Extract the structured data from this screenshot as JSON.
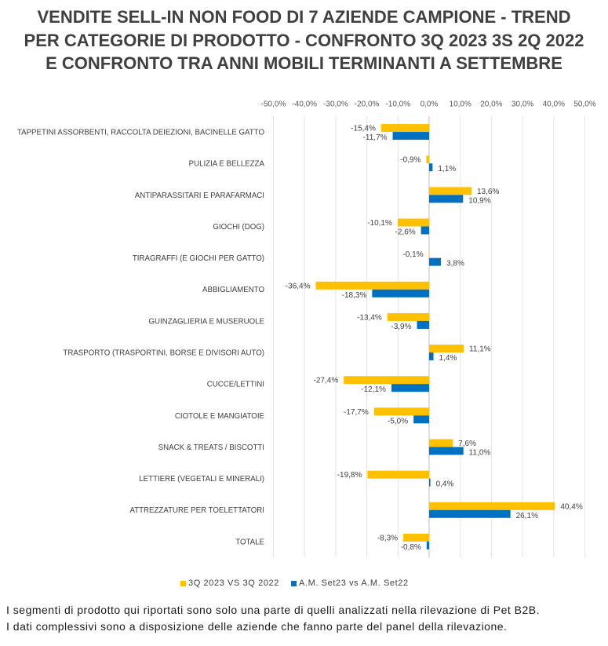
{
  "chart_data": {
    "type": "bar",
    "orientation": "horizontal",
    "title": "VENDITE SELL-IN NON FOOD DI 7 AZIENDE CAMPIONE - TREND\nPER CATEGORIE DI PRODOTTO - CONFRONTO 3Q 2023 3S 2Q 2022\nE CONFRONTO TRA ANNI MOBILI TERMINANTI A SETTEMBRE",
    "xlim": [
      -50,
      50
    ],
    "x_axis_position": "top",
    "x_ticks": [
      -50,
      -40,
      -30,
      -20,
      -10,
      0,
      10,
      20,
      30,
      40,
      50
    ],
    "x_tick_labels": [
      "-50,0%",
      "-40,0%",
      "-30,0%",
      "-20,0%",
      "-10,0%",
      "0,0%",
      "10,0%",
      "20,0%",
      "30,0%",
      "40,0%",
      "50,0%"
    ],
    "grid": true,
    "legend_position": "bottom",
    "categories": [
      "TAPPETINI ASSORBENTI, RACCOLTA DEIEZIONI, BACINELLE GATTO",
      "PULIZIA E BELLEZZA",
      "ANTIPARASSITARI E PARAFARMACI",
      "GIOCHI (DOG)",
      "TIRAGRAFFI (E GIOCHI PER GATTO)",
      "ABBIGLIAMENTO",
      "GUINZAGLIERIA E MUSERUOLE",
      "TRASPORTO (TRASPORTINI, BORSE E DIVISORI AUTO)",
      "CUCCE/LETTINI",
      "CIOTOLE E MANGIATOIE",
      "SNACK & TREATS / BISCOTTI",
      "LETTIERE (VEGETALI E MINERALI)",
      "ATTREZZATURE PER TOELETTATORI",
      "TOTALE"
    ],
    "series": [
      {
        "name": "3Q 2023 VS 3Q 2022",
        "color": "#FFC000",
        "values": [
          -15.4,
          -0.9,
          13.6,
          -10.1,
          -0.1,
          -36.4,
          -13.4,
          11.1,
          -27.4,
          -17.7,
          7.6,
          -19.8,
          40.4,
          -8.3
        ],
        "labels": [
          "-15,4%",
          "-0,9%",
          "13,6%",
          "-10,1%",
          "-0,1%",
          "-36,4%",
          "-13,4%",
          "11,1%",
          "-27,4%",
          "-17,7%",
          "7,6%",
          "-19,8%",
          "40,4%",
          "-8,3%"
        ]
      },
      {
        "name": "A.M. Set23 vs A.M. Set22",
        "color": "#0070C0",
        "values": [
          -11.7,
          1.1,
          10.9,
          -2.6,
          3.8,
          -18.3,
          -3.9,
          1.4,
          -12.1,
          -5.0,
          11.0,
          0.4,
          26.1,
          -0.8
        ],
        "labels": [
          "-11,7%",
          "1,1%",
          "10,9%",
          "-2,6%",
          "3,8%",
          "-18,3%",
          "-3,9%",
          "1,4%",
          "-12,1%",
          "-5,0%",
          "11,0%",
          "0,4%",
          "26,1%",
          "-0,8%"
        ]
      }
    ]
  },
  "footnotes": [
    "I segmenti di prodotto qui riportati sono solo una parte di quelli analizzati nella rilevazione di Pet B2B.",
    "I dati complessivi sono a disposizione delle aziende che fanno parte del panel della rilevazione."
  ]
}
